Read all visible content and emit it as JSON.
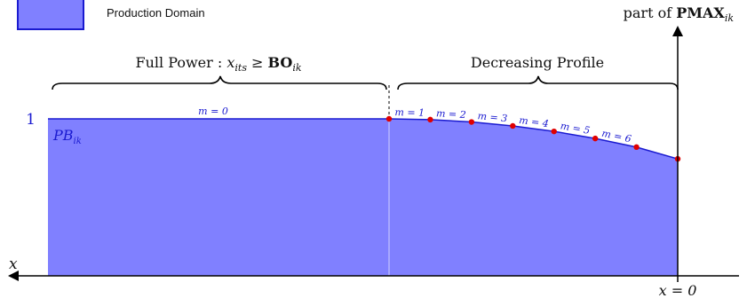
{
  "legend": {
    "label": "Production Domain"
  },
  "axis": {
    "y_title_prefix": "part of",
    "y_title_bold": "PMAX",
    "y_title_sub": "ik",
    "x_label": "x",
    "origin_label": "x = 0"
  },
  "level": {
    "value_label": "1",
    "region_label": "PB",
    "region_sub": "ik"
  },
  "brackets": {
    "full_power": {
      "text": "Full Power : ",
      "math_var": "x",
      "math_var_sub": "its",
      "math_op": " ≥ ",
      "math_bold": "BO",
      "math_bold_sub": "ik"
    },
    "decreasing": {
      "text": "Decreasing Profile"
    }
  },
  "segments": {
    "full_power_label": "m = 0",
    "profile_labels": [
      "m = 1",
      "m = 2",
      "m = 3",
      "m = 4",
      "m = 5",
      "m = 6"
    ]
  },
  "profile_points": [
    1.0,
    0.995,
    0.98,
    0.955,
    0.92,
    0.875,
    0.82,
    0.745
  ],
  "colors": {
    "fill": "#8080ff",
    "line": "#1a1ad0",
    "point": "#e00000",
    "axis": "#000000"
  }
}
